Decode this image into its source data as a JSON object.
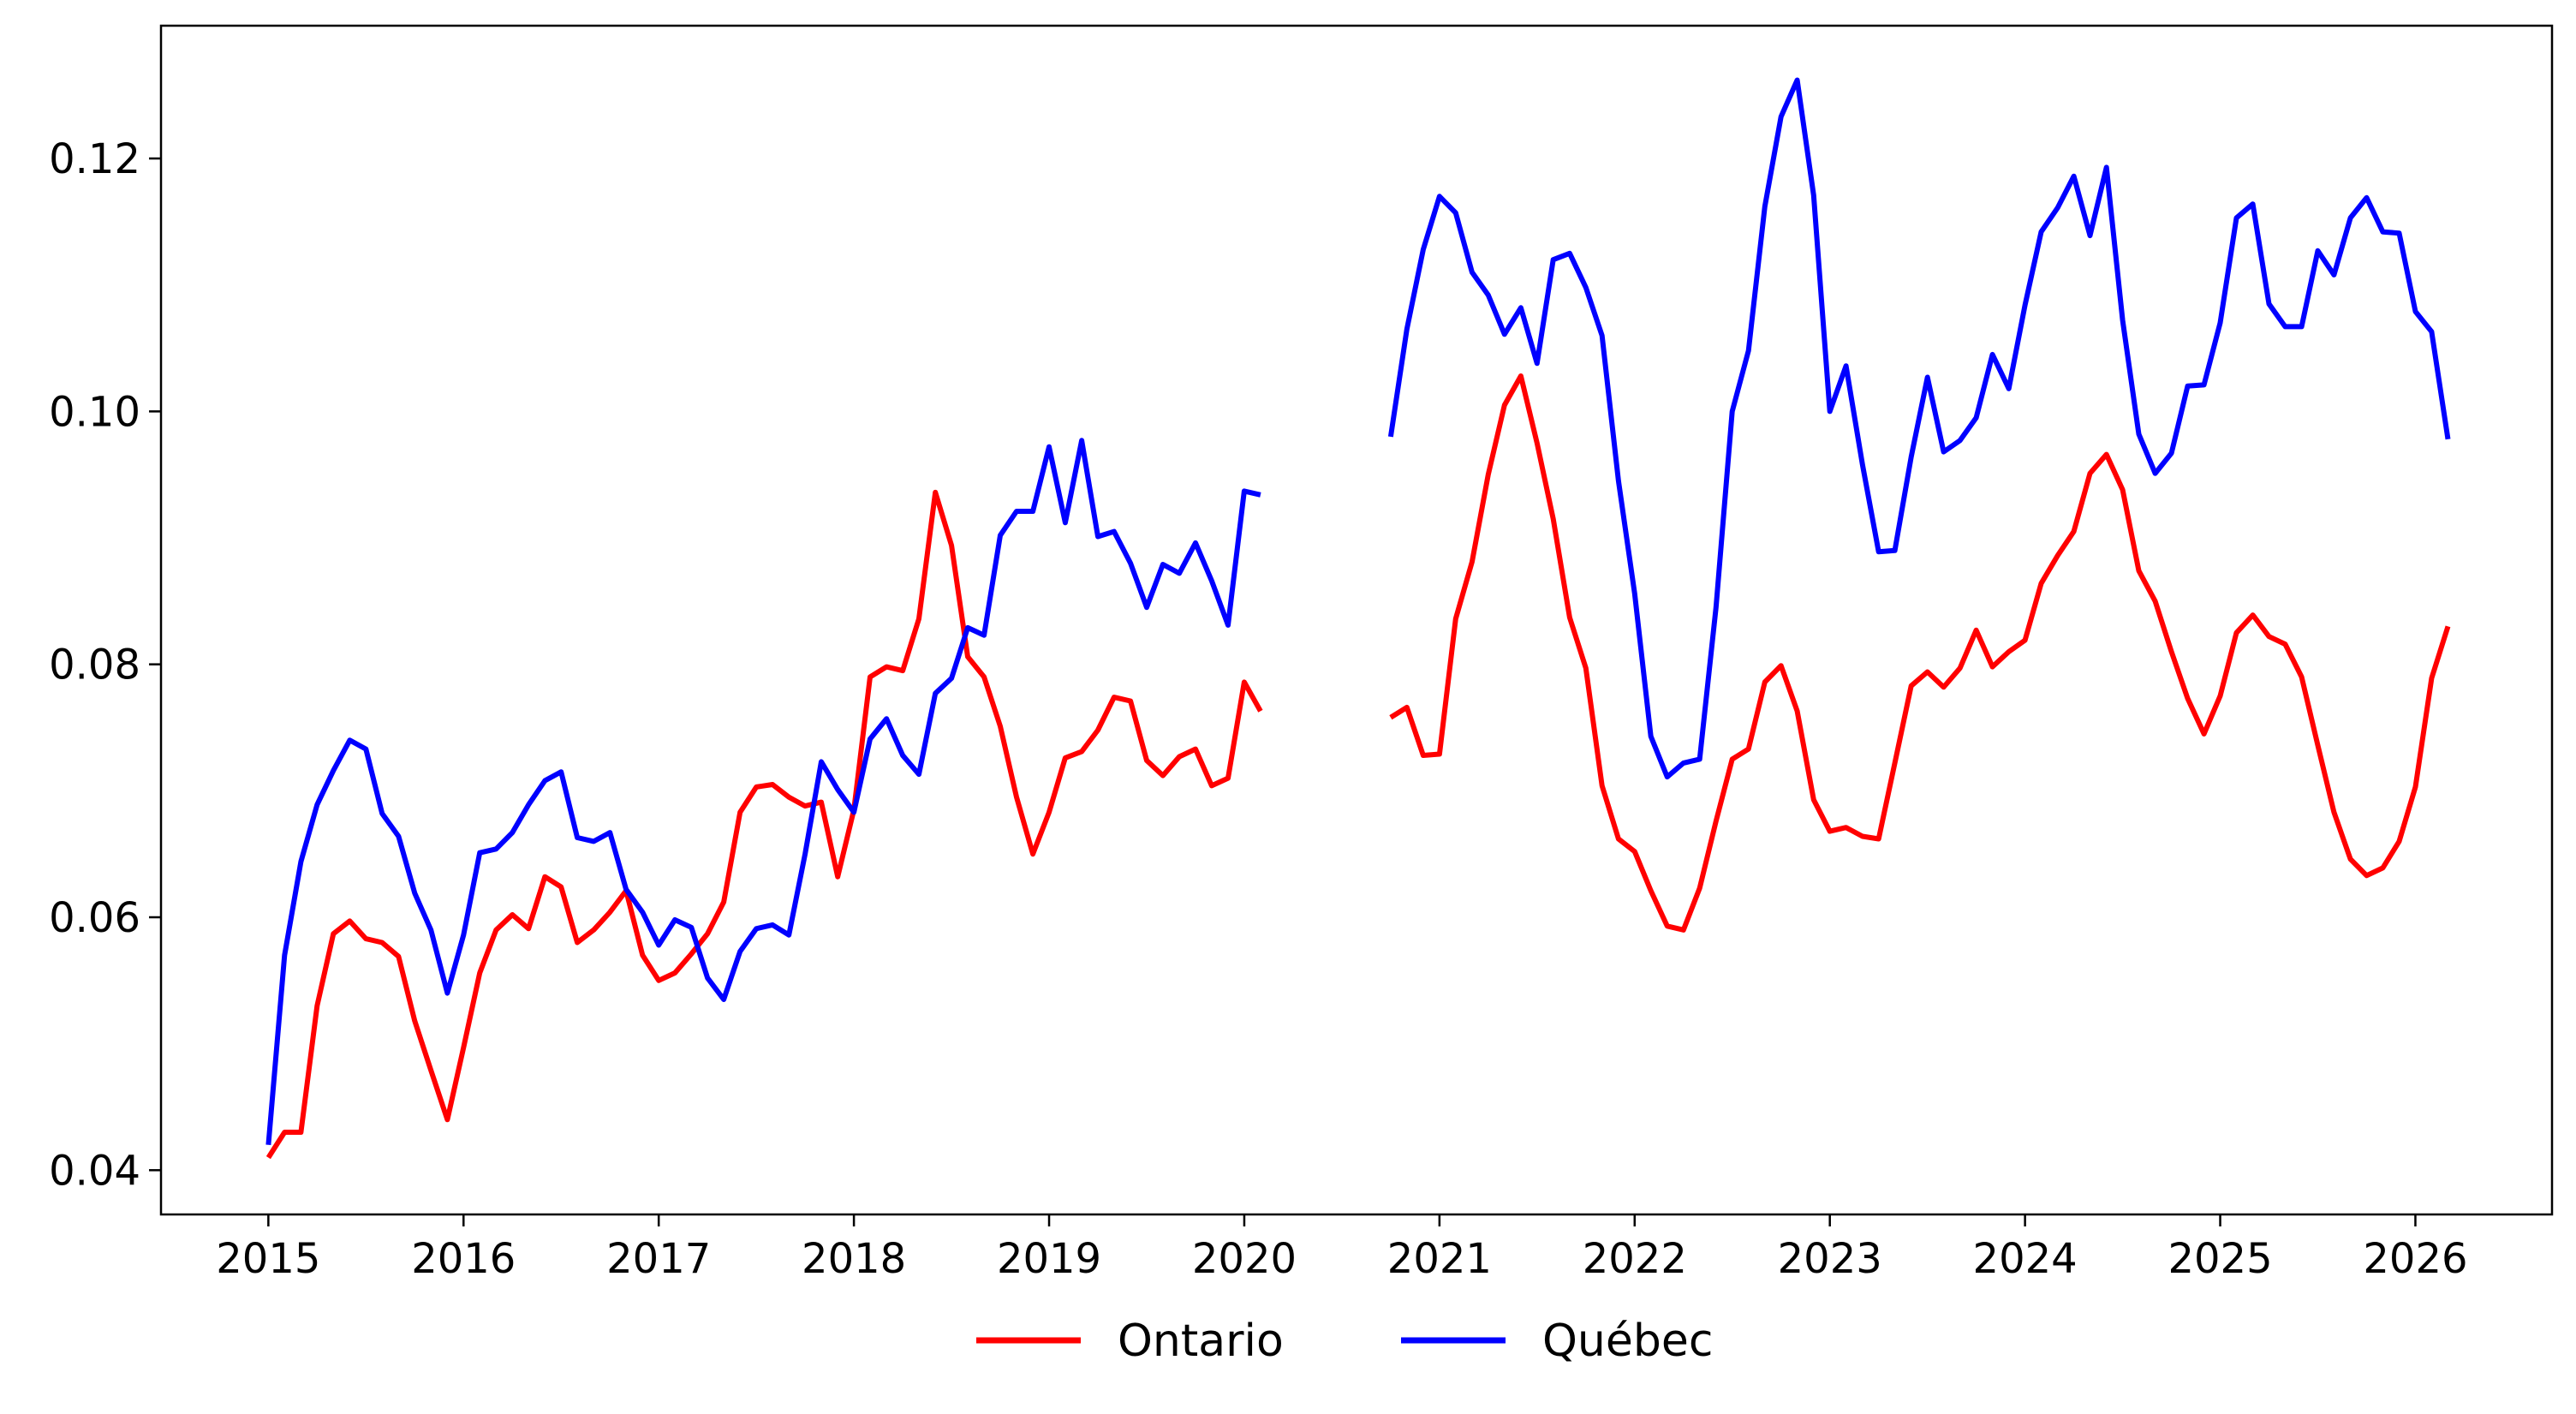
{
  "chart_data": {
    "type": "line",
    "title": "",
    "xlabel": "",
    "ylabel": "",
    "xlim": [
      2014.45,
      2026.7
    ],
    "ylim": [
      0.0365,
      0.1305
    ],
    "xticks": [
      {
        "value": 2015,
        "label": "2015"
      },
      {
        "value": 2016,
        "label": "2016"
      },
      {
        "value": 2017,
        "label": "2017"
      },
      {
        "value": 2018,
        "label": "2018"
      },
      {
        "value": 2019,
        "label": "2019"
      },
      {
        "value": 2020,
        "label": "2020"
      },
      {
        "value": 2021,
        "label": "2021"
      },
      {
        "value": 2022,
        "label": "2022"
      },
      {
        "value": 2023,
        "label": "2023"
      },
      {
        "value": 2024,
        "label": "2024"
      },
      {
        "value": 2025,
        "label": "2025"
      },
      {
        "value": 2026,
        "label": "2026"
      }
    ],
    "yticks": [
      {
        "value": 0.04,
        "label": "0.04"
      },
      {
        "value": 0.06,
        "label": "0.06"
      },
      {
        "value": 0.08,
        "label": "0.08"
      },
      {
        "value": 0.1,
        "label": "0.10"
      },
      {
        "value": 0.12,
        "label": "0.12"
      }
    ],
    "grid": false,
    "legend_position": "bottom-center",
    "series": [
      {
        "name": "Ontario",
        "color": "#ff0000",
        "segments": [
          {
            "x": [
              2015.0,
              2015.083,
              2015.167,
              2015.25,
              2015.333,
              2015.417,
              2015.5,
              2015.583,
              2015.667,
              2015.75,
              2015.833,
              2015.917,
              2016.0,
              2016.083,
              2016.167,
              2016.25,
              2016.333,
              2016.417,
              2016.5,
              2016.583,
              2016.667,
              2016.75,
              2016.833,
              2016.917,
              2017.0,
              2017.083,
              2017.167,
              2017.25,
              2017.333,
              2017.417,
              2017.5,
              2017.583,
              2017.667,
              2017.75,
              2017.833,
              2017.917,
              2018.0,
              2018.083,
              2018.167,
              2018.25,
              2018.333,
              2018.417,
              2018.5,
              2018.583,
              2018.667,
              2018.75,
              2018.833,
              2018.917,
              2019.0,
              2019.083,
              2019.167,
              2019.25,
              2019.333,
              2019.417,
              2019.5,
              2019.583,
              2019.667,
              2019.75,
              2019.833,
              2019.917,
              2020.0,
              2020.083
            ],
            "y": [
              0.041,
              0.043,
              0.043,
              0.053,
              0.0587,
              0.0597,
              0.0583,
              0.058,
              0.0569,
              0.0518,
              0.0479,
              0.044,
              0.0497,
              0.0556,
              0.059,
              0.0602,
              0.0591,
              0.0632,
              0.0624,
              0.058,
              0.059,
              0.0604,
              0.0621,
              0.057,
              0.055,
              0.0556,
              0.0571,
              0.0587,
              0.0612,
              0.0683,
              0.0703,
              0.0705,
              0.0695,
              0.0688,
              0.0691,
              0.0632,
              0.0685,
              0.079,
              0.0798,
              0.0795,
              0.0836,
              0.0936,
              0.0894,
              0.0806,
              0.079,
              0.0751,
              0.0695,
              0.065,
              0.0683,
              0.0726,
              0.0731,
              0.0748,
              0.0774,
              0.0771,
              0.0724,
              0.0712,
              0.0727,
              0.0733,
              0.0704,
              0.071,
              0.0786,
              0.0763
            ]
          },
          {
            "x": [
              2020.75,
              2020.833,
              2020.917,
              2021.0,
              2021.083,
              2021.167,
              2021.25,
              2021.333,
              2021.417,
              2021.5,
              2021.583,
              2021.667,
              2021.75,
              2021.833,
              2021.917,
              2022.0,
              2022.083,
              2022.167,
              2022.25,
              2022.333,
              2022.417,
              2022.5,
              2022.583,
              2022.667,
              2022.75,
              2022.833,
              2022.917,
              2023.0,
              2023.083,
              2023.167,
              2023.25,
              2023.333,
              2023.417,
              2023.5,
              2023.583,
              2023.667,
              2023.75,
              2023.833,
              2023.917,
              2024.0,
              2024.083,
              2024.167,
              2024.25,
              2024.333,
              2024.417,
              2024.5,
              2024.583,
              2024.667,
              2024.75,
              2024.833,
              2024.917,
              2025.0,
              2025.083,
              2025.167,
              2025.25,
              2025.333,
              2025.417,
              2025.5,
              2025.583,
              2025.667,
              2025.75,
              2025.833,
              2025.917,
              2026.0,
              2026.083,
              2026.167
            ],
            "y": [
              0.0758,
              0.0766,
              0.0728,
              0.0729,
              0.0836,
              0.0881,
              0.095,
              0.1005,
              0.1028,
              0.0975,
              0.0915,
              0.0837,
              0.0797,
              0.0704,
              0.0662,
              0.0652,
              0.0621,
              0.0593,
              0.059,
              0.0623,
              0.0676,
              0.0725,
              0.0733,
              0.0786,
              0.0799,
              0.0763,
              0.0693,
              0.0668,
              0.0671,
              0.0664,
              0.0662,
              0.0722,
              0.0783,
              0.0794,
              0.0782,
              0.0797,
              0.0827,
              0.0798,
              0.081,
              0.0819,
              0.0864,
              0.0886,
              0.0905,
              0.0951,
              0.0966,
              0.0938,
              0.0874,
              0.085,
              0.081,
              0.0773,
              0.0745,
              0.0775,
              0.0825,
              0.0839,
              0.0822,
              0.0816,
              0.079,
              0.0736,
              0.0683,
              0.0646,
              0.0633,
              0.0639,
              0.066,
              0.0703,
              0.0789,
              0.083
            ]
          }
        ]
      },
      {
        "name": "Québec",
        "color": "#0000ff",
        "segments": [
          {
            "x": [
              2015.0,
              2015.083,
              2015.167,
              2015.25,
              2015.333,
              2015.417,
              2015.5,
              2015.583,
              2015.667,
              2015.75,
              2015.833,
              2015.917,
              2016.0,
              2016.083,
              2016.167,
              2016.25,
              2016.333,
              2016.417,
              2016.5,
              2016.583,
              2016.667,
              2016.75,
              2016.833,
              2016.917,
              2017.0,
              2017.083,
              2017.167,
              2017.25,
              2017.333,
              2017.417,
              2017.5,
              2017.583,
              2017.667,
              2017.75,
              2017.833,
              2017.917,
              2018.0,
              2018.083,
              2018.167,
              2018.25,
              2018.333,
              2018.417,
              2018.5,
              2018.583,
              2018.667,
              2018.75,
              2018.833,
              2018.917,
              2019.0,
              2019.083,
              2019.167,
              2019.25,
              2019.333,
              2019.417,
              2019.5,
              2019.583,
              2019.667,
              2019.75,
              2019.833,
              2019.917,
              2020.0,
              2020.083
            ],
            "y": [
              0.042,
              0.057,
              0.0644,
              0.0689,
              0.0716,
              0.074,
              0.0733,
              0.0682,
              0.0664,
              0.0619,
              0.059,
              0.054,
              0.0586,
              0.0651,
              0.0654,
              0.0667,
              0.0689,
              0.0708,
              0.0715,
              0.0663,
              0.066,
              0.0667,
              0.0622,
              0.0604,
              0.0578,
              0.0598,
              0.0592,
              0.0552,
              0.0535,
              0.0573,
              0.0591,
              0.0594,
              0.0586,
              0.065,
              0.0723,
              0.0701,
              0.0683,
              0.0741,
              0.0757,
              0.0728,
              0.0713,
              0.0777,
              0.0789,
              0.0829,
              0.0823,
              0.0902,
              0.0921,
              0.0921,
              0.0972,
              0.0912,
              0.0977,
              0.0901,
              0.0905,
              0.088,
              0.0845,
              0.0879,
              0.0872,
              0.0896,
              0.0866,
              0.0831,
              0.0937,
              0.0934
            ]
          },
          {
            "x": [
              2020.75,
              2020.833,
              2020.917,
              2021.0,
              2021.083,
              2021.167,
              2021.25,
              2021.333,
              2021.417,
              2021.5,
              2021.583,
              2021.667,
              2021.75,
              2021.833,
              2021.917,
              2022.0,
              2022.083,
              2022.167,
              2022.25,
              2022.333,
              2022.417,
              2022.5,
              2022.583,
              2022.667,
              2022.75,
              2022.833,
              2022.917,
              2023.0,
              2023.083,
              2023.167,
              2023.25,
              2023.333,
              2023.417,
              2023.5,
              2023.583,
              2023.667,
              2023.75,
              2023.833,
              2023.917,
              2024.0,
              2024.083,
              2024.167,
              2024.25,
              2024.333,
              2024.417,
              2024.5,
              2024.583,
              2024.667,
              2024.75,
              2024.833,
              2024.917,
              2025.0,
              2025.083,
              2025.167,
              2025.25,
              2025.333,
              2025.417,
              2025.5,
              2025.583,
              2025.667,
              2025.75,
              2025.833,
              2025.917,
              2026.0,
              2026.083,
              2026.167
            ],
            "y": [
              0.098,
              0.1065,
              0.1128,
              0.117,
              0.1157,
              0.111,
              0.1092,
              0.1061,
              0.1082,
              0.1038,
              0.112,
              0.1125,
              0.1098,
              0.106,
              0.0945,
              0.0856,
              0.0743,
              0.0711,
              0.0722,
              0.0725,
              0.0845,
              0.1,
              0.1048,
              0.1162,
              0.1233,
              0.1262,
              0.1171,
              0.1,
              0.1036,
              0.0958,
              0.0889,
              0.089,
              0.0964,
              0.1027,
              0.0968,
              0.0977,
              0.0995,
              0.1045,
              0.1018,
              0.1084,
              0.1142,
              0.1161,
              0.1186,
              0.1139,
              0.1193,
              0.1072,
              0.0982,
              0.0951,
              0.0967,
              0.102,
              0.1021,
              0.107,
              0.1153,
              0.1164,
              0.1085,
              0.1067,
              0.1067,
              0.1127,
              0.1108,
              0.1153,
              0.1169,
              0.1142,
              0.1141,
              0.1079,
              0.1063,
              0.0978
            ]
          }
        ]
      }
    ]
  }
}
